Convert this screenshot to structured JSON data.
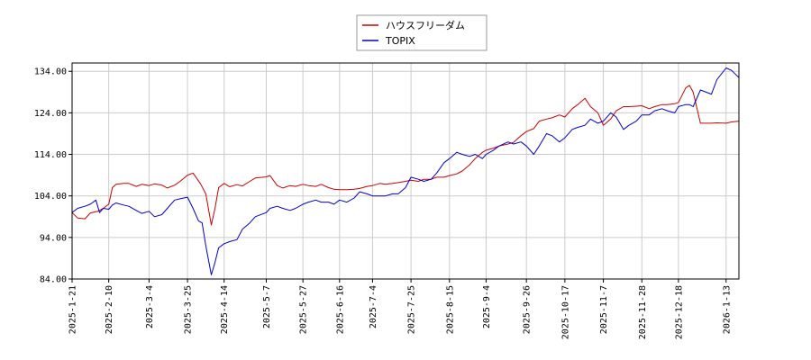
{
  "chart_data": {
    "type": "line",
    "title": "",
    "xlabel": "",
    "ylabel": "",
    "ylim": [
      84.0,
      136.0
    ],
    "yticks": [
      "84.00",
      "94.00",
      "104.00",
      "114.00",
      "124.00",
      "134.00"
    ],
    "xticks": [
      "2025-1-21",
      "2025-2-10",
      "2025-3-4",
      "2025-3-25",
      "2025-4-14",
      "2025-5-7",
      "2025-5-27",
      "2025-6-16",
      "2025-7-4",
      "2025-7-25",
      "2025-8-15",
      "2025-9-4",
      "2025-9-26",
      "2025-10-17",
      "2025-11-7",
      "2025-11-28",
      "2025-12-18",
      "2026-1-13"
    ],
    "grid": true,
    "legend_position": "top-center",
    "series": [
      {
        "name": "ハウスフリーダム",
        "color": "#cc0000",
        "points": [
          [
            "2025-1-21",
            100.0
          ],
          [
            "2025-1-24",
            98.7
          ],
          [
            "2025-1-28",
            98.5
          ],
          [
            "2025-1-31",
            99.9
          ],
          [
            "2025-2-4",
            100.3
          ],
          [
            "2025-2-7",
            101.0
          ],
          [
            "2025-2-10",
            102.0
          ],
          [
            "2025-2-12",
            106.0
          ],
          [
            "2025-2-14",
            106.8
          ],
          [
            "2025-2-18",
            107.0
          ],
          [
            "2025-2-21",
            107.0
          ],
          [
            "2025-2-25",
            106.3
          ],
          [
            "2025-2-28",
            106.8
          ],
          [
            "2025-3-4",
            106.5
          ],
          [
            "2025-3-7",
            106.9
          ],
          [
            "2025-3-11",
            106.6
          ],
          [
            "2025-3-14",
            105.9
          ],
          [
            "2025-3-18",
            106.6
          ],
          [
            "2025-3-21",
            107.5
          ],
          [
            "2025-3-25",
            109.0
          ],
          [
            "2025-3-28",
            109.5
          ],
          [
            "2025-4-1",
            107.0
          ],
          [
            "2025-4-4",
            104.5
          ],
          [
            "2025-4-7",
            97.0
          ],
          [
            "2025-4-9",
            101.0
          ],
          [
            "2025-4-11",
            106.0
          ],
          [
            "2025-4-14",
            107.0
          ],
          [
            "2025-4-17",
            106.2
          ],
          [
            "2025-4-21",
            106.7
          ],
          [
            "2025-4-24",
            106.4
          ],
          [
            "2025-4-28",
            107.5
          ],
          [
            "2025-5-1",
            108.3
          ],
          [
            "2025-5-7",
            108.6
          ],
          [
            "2025-5-9",
            108.9
          ],
          [
            "2025-5-13",
            106.5
          ],
          [
            "2025-5-16",
            105.9
          ],
          [
            "2025-5-20",
            106.5
          ],
          [
            "2025-5-23",
            106.3
          ],
          [
            "2025-5-27",
            106.8
          ],
          [
            "2025-5-30",
            106.5
          ],
          [
            "2025-6-3",
            106.3
          ],
          [
            "2025-6-6",
            106.8
          ],
          [
            "2025-6-10",
            106.0
          ],
          [
            "2025-6-13",
            105.6
          ],
          [
            "2025-6-16",
            105.5
          ],
          [
            "2025-6-20",
            105.5
          ],
          [
            "2025-6-24",
            105.6
          ],
          [
            "2025-6-27",
            105.8
          ],
          [
            "2025-7-1",
            106.3
          ],
          [
            "2025-7-4",
            106.5
          ],
          [
            "2025-7-8",
            107.0
          ],
          [
            "2025-7-11",
            106.8
          ],
          [
            "2025-7-15",
            107.0
          ],
          [
            "2025-7-18",
            107.2
          ],
          [
            "2025-7-22",
            107.5
          ],
          [
            "2025-7-25",
            107.8
          ],
          [
            "2025-7-29",
            107.5
          ],
          [
            "2025-8-1",
            108.0
          ],
          [
            "2025-8-5",
            108.0
          ],
          [
            "2025-8-8",
            108.5
          ],
          [
            "2025-8-12",
            108.5
          ],
          [
            "2025-8-15",
            108.9
          ],
          [
            "2025-8-19",
            109.3
          ],
          [
            "2025-8-22",
            110.0
          ],
          [
            "2025-8-26",
            111.5
          ],
          [
            "2025-8-29",
            113.0
          ],
          [
            "2025-9-2",
            114.5
          ],
          [
            "2025-9-4",
            115.0
          ],
          [
            "2025-9-8",
            115.5
          ],
          [
            "2025-9-11",
            116.0
          ],
          [
            "2025-9-16",
            116.5
          ],
          [
            "2025-9-19",
            116.9
          ],
          [
            "2025-9-23",
            118.5
          ],
          [
            "2025-9-26",
            119.5
          ],
          [
            "2025-9-30",
            120.2
          ],
          [
            "2025-10-3",
            122.0
          ],
          [
            "2025-10-7",
            122.5
          ],
          [
            "2025-10-10",
            122.8
          ],
          [
            "2025-10-14",
            123.5
          ],
          [
            "2025-10-17",
            123.0
          ],
          [
            "2025-10-21",
            125.0
          ],
          [
            "2025-10-24",
            126.0
          ],
          [
            "2025-10-28",
            127.5
          ],
          [
            "2025-10-31",
            125.5
          ],
          [
            "2025-11-4",
            124.0
          ],
          [
            "2025-11-7",
            121.0
          ],
          [
            "2025-11-11",
            122.5
          ],
          [
            "2025-11-14",
            124.5
          ],
          [
            "2025-11-18",
            125.5
          ],
          [
            "2025-11-21",
            125.5
          ],
          [
            "2025-11-25",
            125.6
          ],
          [
            "2025-11-28",
            125.7
          ],
          [
            "2025-12-2",
            125.0
          ],
          [
            "2025-12-5",
            125.5
          ],
          [
            "2025-12-9",
            126.0
          ],
          [
            "2025-12-12",
            126.0
          ],
          [
            "2025-12-16",
            126.2
          ],
          [
            "2025-12-18",
            126.5
          ],
          [
            "2025-12-22",
            130.0
          ],
          [
            "2025-12-24",
            130.6
          ],
          [
            "2025-12-26",
            129.0
          ],
          [
            "2025-12-30",
            121.5
          ],
          [
            "2026-1-5",
            121.5
          ],
          [
            "2026-1-8",
            121.6
          ],
          [
            "2026-1-13",
            121.5
          ],
          [
            "2026-1-16",
            121.8
          ],
          [
            "2026-1-20",
            122.0
          ]
        ]
      },
      {
        "name": "TOPIX",
        "color": "#0000cc",
        "points": [
          [
            "2025-1-21",
            100.0
          ],
          [
            "2025-1-24",
            101.0
          ],
          [
            "2025-1-28",
            101.5
          ],
          [
            "2025-1-31",
            102.0
          ],
          [
            "2025-2-3",
            103.0
          ],
          [
            "2025-2-5",
            100.0
          ],
          [
            "2025-2-7",
            101.0
          ],
          [
            "2025-2-10",
            100.8
          ],
          [
            "2025-2-12",
            101.8
          ],
          [
            "2025-2-14",
            102.3
          ],
          [
            "2025-2-18",
            101.8
          ],
          [
            "2025-2-21",
            101.5
          ],
          [
            "2025-2-25",
            100.5
          ],
          [
            "2025-2-28",
            99.8
          ],
          [
            "2025-3-4",
            100.3
          ],
          [
            "2025-3-7",
            99.0
          ],
          [
            "2025-3-11",
            99.5
          ],
          [
            "2025-3-14",
            101.0
          ],
          [
            "2025-3-18",
            103.0
          ],
          [
            "2025-3-21",
            103.3
          ],
          [
            "2025-3-25",
            103.7
          ],
          [
            "2025-3-28",
            101.0
          ],
          [
            "2025-3-31",
            98.0
          ],
          [
            "2025-4-2",
            97.5
          ],
          [
            "2025-4-4",
            92.0
          ],
          [
            "2025-4-7",
            85.0
          ],
          [
            "2025-4-9",
            88.0
          ],
          [
            "2025-4-11",
            91.5
          ],
          [
            "2025-4-14",
            92.5
          ],
          [
            "2025-4-17",
            93.0
          ],
          [
            "2025-4-21",
            93.5
          ],
          [
            "2025-4-24",
            96.0
          ],
          [
            "2025-4-28",
            97.5
          ],
          [
            "2025-5-1",
            99.0
          ],
          [
            "2025-5-7",
            100.0
          ],
          [
            "2025-5-9",
            101.0
          ],
          [
            "2025-5-13",
            101.5
          ],
          [
            "2025-5-16",
            101.0
          ],
          [
            "2025-5-20",
            100.5
          ],
          [
            "2025-5-23",
            101.0
          ],
          [
            "2025-5-27",
            102.0
          ],
          [
            "2025-5-30",
            102.5
          ],
          [
            "2025-6-3",
            103.0
          ],
          [
            "2025-6-6",
            102.5
          ],
          [
            "2025-6-10",
            102.5
          ],
          [
            "2025-6-13",
            102.0
          ],
          [
            "2025-6-16",
            103.0
          ],
          [
            "2025-6-20",
            102.5
          ],
          [
            "2025-6-24",
            103.5
          ],
          [
            "2025-6-27",
            105.0
          ],
          [
            "2025-7-1",
            104.5
          ],
          [
            "2025-7-4",
            104.0
          ],
          [
            "2025-7-8",
            104.0
          ],
          [
            "2025-7-11",
            104.0
          ],
          [
            "2025-7-15",
            104.5
          ],
          [
            "2025-7-18",
            104.5
          ],
          [
            "2025-7-22",
            106.0
          ],
          [
            "2025-7-25",
            108.5
          ],
          [
            "2025-7-29",
            108.0
          ],
          [
            "2025-8-1",
            107.5
          ],
          [
            "2025-8-5",
            108.0
          ],
          [
            "2025-8-8",
            109.5
          ],
          [
            "2025-8-12",
            112.0
          ],
          [
            "2025-8-15",
            113.0
          ],
          [
            "2025-8-19",
            114.5
          ],
          [
            "2025-8-22",
            114.0
          ],
          [
            "2025-8-26",
            113.5
          ],
          [
            "2025-8-29",
            114.0
          ],
          [
            "2025-9-2",
            113.0
          ],
          [
            "2025-9-4",
            114.0
          ],
          [
            "2025-9-8",
            115.0
          ],
          [
            "2025-9-11",
            116.0
          ],
          [
            "2025-9-16",
            117.0
          ],
          [
            "2025-9-19",
            116.5
          ],
          [
            "2025-9-23",
            117.0
          ],
          [
            "2025-9-26",
            116.0
          ],
          [
            "2025-9-30",
            114.0
          ],
          [
            "2025-10-3",
            116.0
          ],
          [
            "2025-10-7",
            119.0
          ],
          [
            "2025-10-10",
            118.5
          ],
          [
            "2025-10-14",
            117.0
          ],
          [
            "2025-10-17",
            118.0
          ],
          [
            "2025-10-21",
            120.0
          ],
          [
            "2025-10-24",
            120.5
          ],
          [
            "2025-10-28",
            121.0
          ],
          [
            "2025-10-31",
            122.5
          ],
          [
            "2025-11-4",
            121.5
          ],
          [
            "2025-11-7",
            122.0
          ],
          [
            "2025-11-11",
            124.0
          ],
          [
            "2025-11-14",
            123.0
          ],
          [
            "2025-11-18",
            120.0
          ],
          [
            "2025-11-21",
            121.0
          ],
          [
            "2025-11-25",
            122.0
          ],
          [
            "2025-11-28",
            123.5
          ],
          [
            "2025-12-2",
            123.5
          ],
          [
            "2025-12-5",
            124.5
          ],
          [
            "2025-12-9",
            125.0
          ],
          [
            "2025-12-12",
            124.5
          ],
          [
            "2025-12-16",
            124.0
          ],
          [
            "2025-12-18",
            125.5
          ],
          [
            "2025-12-22",
            126.0
          ],
          [
            "2025-12-24",
            126.0
          ],
          [
            "2025-12-26",
            125.5
          ],
          [
            "2025-12-30",
            129.5
          ],
          [
            "2026-1-5",
            128.5
          ],
          [
            "2026-1-8",
            132.0
          ],
          [
            "2026-1-13",
            134.8
          ],
          [
            "2026-1-16",
            134.2
          ],
          [
            "2026-1-20",
            132.5
          ]
        ]
      }
    ]
  }
}
